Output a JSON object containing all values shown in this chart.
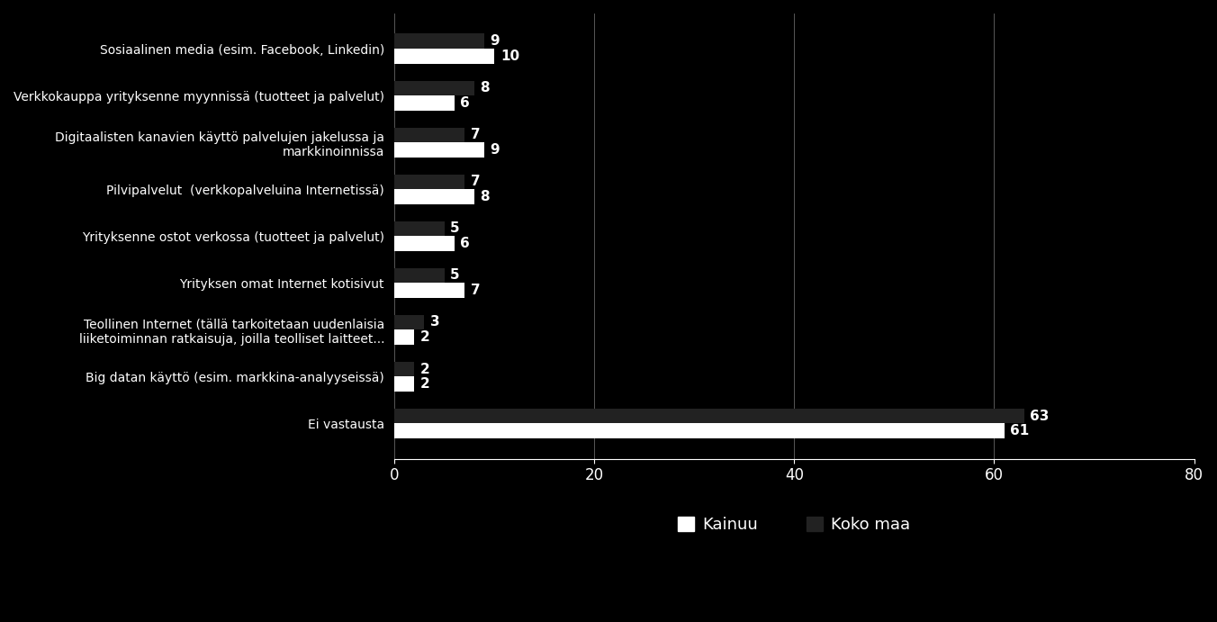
{
  "categories": [
    "Sosiaalinen media (esim. Facebook, Linkedin)",
    "Verkkokauppa yrityksenne myynnissä (tuotteet ja palvelut)",
    "Digitaalisten kanavien käyttö palvelujen jakelussa ja\nmarkkinoinnissa",
    "Pilvipalvelut  (verkkopalveluina Internetissä)",
    "Yrityksenne ostot verkossa (tuotteet ja palvelut)",
    "Yrityksen omat Internet kotisivut",
    "Teollinen Internet (tällä tarkoitetaan uudenlaisia\nliiketoiminnan ratkaisuja, joilla teolliset laitteet...",
    "Big datan käyttö (esim. markkina-analyyseissä)",
    "Ei vastausta"
  ],
  "kainuu": [
    10,
    6,
    9,
    8,
    6,
    7,
    2,
    2,
    61
  ],
  "koko_maa": [
    9,
    8,
    7,
    7,
    5,
    5,
    3,
    2,
    63
  ],
  "color_kainuu": "#ffffff",
  "color_koko_maa": "#222222",
  "background_color": "#000000",
  "text_color": "#ffffff",
  "bar_height": 0.32,
  "xlim": [
    0,
    80
  ],
  "xticks": [
    0,
    20,
    40,
    60,
    80
  ],
  "legend_kainuu": "Kainuu",
  "legend_koko_maa": "Koko maa",
  "fontsize_labels": 10,
  "fontsize_values": 11,
  "fontsize_ticks": 12
}
